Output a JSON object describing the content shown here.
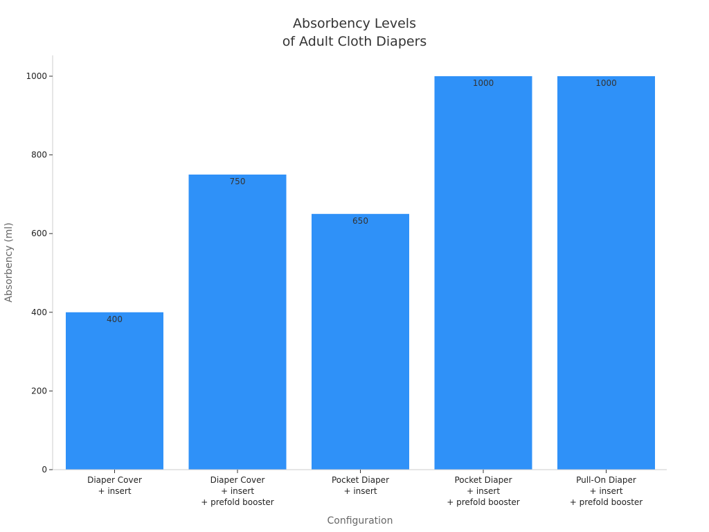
{
  "chart_data": {
    "type": "bar",
    "title": [
      "Absorbency Levels",
      "of Adult Cloth Diapers"
    ],
    "xlabel": "Configuration",
    "ylabel": "Absorbency (ml)",
    "categories": [
      [
        "Diaper Cover",
        "+ insert"
      ],
      [
        "Diaper Cover",
        "+ insert",
        "+ prefold booster"
      ],
      [
        "Pocket Diaper",
        "+ insert"
      ],
      [
        "Pocket Diaper",
        "+ insert",
        "+ prefold booster"
      ],
      [
        "Pull-On Diaper",
        "+ insert",
        "+ prefold booster"
      ]
    ],
    "values": [
      400,
      750,
      650,
      1000,
      1000
    ],
    "data_labels": [
      "400",
      "750",
      "650",
      "1000",
      "1000"
    ],
    "ylim": [
      0,
      1050
    ],
    "yticks": [
      0,
      200,
      400,
      600,
      800,
      1000
    ],
    "ytick_labels": [
      "0",
      "200",
      "400",
      "600",
      "800",
      "1000"
    ],
    "grid": false,
    "legend": "none",
    "bar_color": "#2f91f8"
  }
}
